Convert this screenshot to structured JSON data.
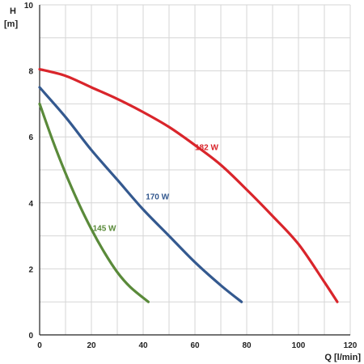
{
  "chart_data": {
    "type": "line",
    "xlabel": "Q [l/min]",
    "ylabel_line1": "H",
    "ylabel_line2": "[m]",
    "xlim": [
      0,
      120
    ],
    "ylim": [
      0,
      10
    ],
    "x_ticks": [
      0,
      20,
      40,
      60,
      80,
      100,
      120
    ],
    "y_ticks": [
      0,
      2,
      4,
      6,
      8,
      10
    ],
    "x_minor_step": 10,
    "y_minor_step": 1,
    "grid": true,
    "series": [
      {
        "name": "182 W",
        "color": "#d9252b",
        "label_at": [
          60,
          5.6
        ],
        "x": [
          0,
          10,
          20,
          30,
          40,
          50,
          60,
          70,
          80,
          90,
          100,
          110,
          115
        ],
        "y": [
          8.05,
          7.85,
          7.5,
          7.15,
          6.75,
          6.3,
          5.75,
          5.15,
          4.4,
          3.6,
          2.75,
          1.6,
          1.0
        ]
      },
      {
        "name": "170 W",
        "color": "#34598f",
        "label_at": [
          41,
          4.1
        ],
        "x": [
          0,
          10,
          20,
          30,
          40,
          50,
          60,
          70,
          78
        ],
        "y": [
          7.5,
          6.6,
          5.6,
          4.7,
          3.8,
          3.0,
          2.2,
          1.5,
          1.0
        ]
      },
      {
        "name": "145 W",
        "color": "#5a8a3a",
        "label_at": [
          20.5,
          3.15
        ],
        "x": [
          0,
          5,
          10,
          15,
          20,
          25,
          30,
          35,
          42
        ],
        "y": [
          7.0,
          5.9,
          4.9,
          4.0,
          3.2,
          2.5,
          1.9,
          1.45,
          1.0
        ]
      }
    ]
  }
}
